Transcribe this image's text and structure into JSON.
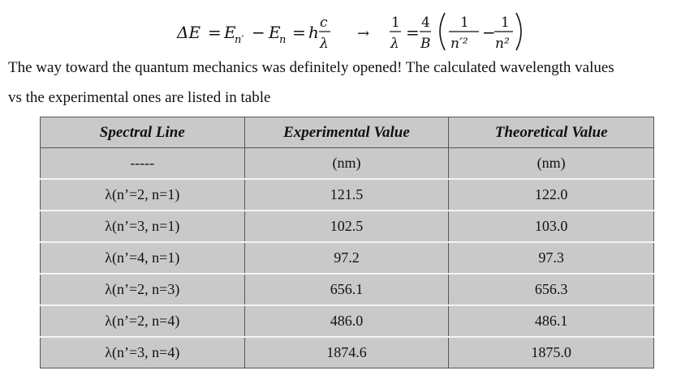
{
  "equation": {
    "lhs_delta": "ΔE",
    "eq1": "=",
    "e_nprime": "E",
    "sub_nprime": "n′",
    "minus": "−",
    "e_n": "E",
    "sub_n": "n",
    "eq2": "=",
    "h": "h",
    "c_num": "c",
    "lambda_den": "λ",
    "arrow": "→",
    "one": "1",
    "lambda2": "λ",
    "eq3": "=",
    "four": "4",
    "B": "B",
    "one_a": "1",
    "nprime_sq": "n′²",
    "one_b": "1",
    "n_sq": "n²"
  },
  "paragraph": {
    "line1": "The way toward the quantum mechanics was definitely opened! The calculated wavelength values",
    "line2": "vs the experimental ones are listed in  table"
  },
  "table": {
    "headers": [
      "Spectral Line",
      "Experimental Value",
      "Theoretical Value"
    ],
    "units_row": [
      "-----",
      "(nm)",
      "(nm)"
    ],
    "rows": [
      [
        "λ(n’=2, n=1)",
        "121.5",
        "122.0"
      ],
      [
        "λ(n’=3, n=1)",
        "102.5",
        "103.0"
      ],
      [
        "λ(n’=4, n=1)",
        "97.2",
        "97.3"
      ],
      [
        "λ(n’=2, n=3)",
        "656.1",
        "656.3"
      ],
      [
        "λ(n’=2, n=4)",
        "486.0",
        "486.1"
      ],
      [
        "λ(n’=3, n=4)",
        "1874.6",
        "1875.0"
      ]
    ]
  }
}
